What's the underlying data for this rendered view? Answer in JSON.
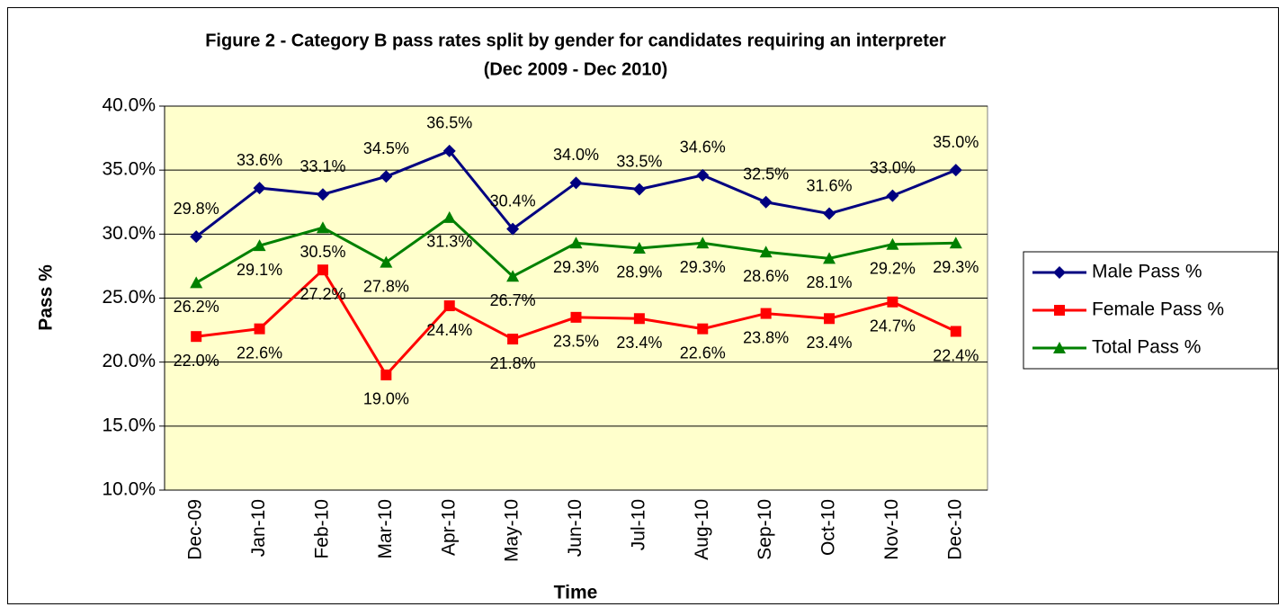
{
  "chart_data": {
    "type": "line",
    "title": "Figure 2 - Category B pass rates split by gender for candidates requiring an interpreter",
    "subtitle": "(Dec 2009 - Dec 2010)",
    "x_label": "Time",
    "y_label": "Pass %",
    "categories": [
      "Dec-09",
      "Jan-10",
      "Feb-10",
      "Mar-10",
      "Apr-10",
      "May-10",
      "Jun-10",
      "Jul-10",
      "Aug-10",
      "Sep-10",
      "Oct-10",
      "Nov-10",
      "Dec-10"
    ],
    "series": [
      {
        "name": "Male Pass %",
        "color": "#000080",
        "marker": "diamond",
        "values": [
          29.8,
          33.6,
          33.1,
          34.5,
          36.5,
          30.4,
          34.0,
          33.5,
          34.6,
          32.5,
          31.6,
          33.0,
          35.0
        ],
        "value_labels": [
          "29.8%",
          "33.6%",
          "33.1%",
          "34.5%",
          "36.5%",
          "30.4%",
          "34.0%",
          "33.5%",
          "34.6%",
          "32.5%",
          "31.6%",
          "33.0%",
          "35.0%"
        ]
      },
      {
        "name": "Female Pass %",
        "color": "#ff0000",
        "marker": "square",
        "values": [
          22.0,
          22.6,
          27.2,
          19.0,
          24.4,
          21.8,
          23.5,
          23.4,
          22.6,
          23.8,
          23.4,
          24.7,
          22.4
        ],
        "value_labels": [
          "22.0%",
          "22.6%",
          "27.2%",
          "19.0%",
          "24.4%",
          "21.8%",
          "23.5%",
          "23.4%",
          "22.6%",
          "23.8%",
          "23.4%",
          "24.7%",
          "22.4%"
        ]
      },
      {
        "name": "Total Pass %",
        "color": "#008000",
        "marker": "triangle",
        "values": [
          26.2,
          29.1,
          30.5,
          27.8,
          31.3,
          26.7,
          29.3,
          28.9,
          29.3,
          28.6,
          28.1,
          29.2,
          29.3
        ],
        "value_labels": [
          "26.2%",
          "29.1%",
          "30.5%",
          "27.8%",
          "31.3%",
          "26.7%",
          "29.3%",
          "28.9%",
          "29.3%",
          "28.6%",
          "28.1%",
          "29.2%",
          "29.3%"
        ]
      }
    ],
    "ylim": [
      10,
      40
    ],
    "yticks": [
      {
        "value": 10,
        "label": "10.0%"
      },
      {
        "value": 15,
        "label": "15.0%"
      },
      {
        "value": 20,
        "label": "20.0%"
      },
      {
        "value": 25,
        "label": "25.0%"
      },
      {
        "value": 30,
        "label": "30.0%"
      },
      {
        "value": 35,
        "label": "35.0%"
      },
      {
        "value": 40,
        "label": "40.0%"
      }
    ],
    "grid": true,
    "legend": "right",
    "background": "#ffffcc"
  }
}
